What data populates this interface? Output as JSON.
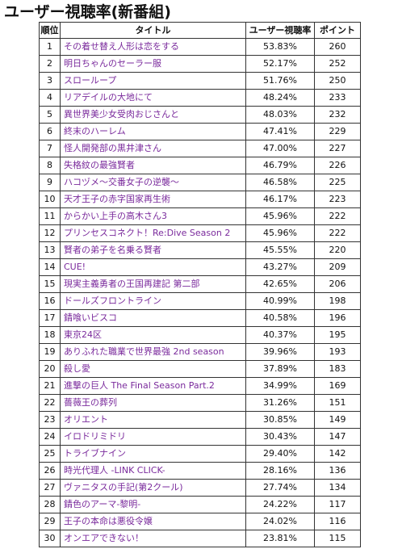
{
  "page": {
    "title": "ユーザー視聴率(新番組)"
  },
  "table": {
    "headers": {
      "rank": "順位",
      "title": "タイトル",
      "rate": "ユーザー視聴率",
      "points": "ポイント"
    },
    "rows": [
      {
        "rank": "1",
        "title": "その着せ替え人形は恋をする",
        "rate": "53.83%",
        "points": "260"
      },
      {
        "rank": "2",
        "title": "明日ちゃんのセーラー服",
        "rate": "52.17%",
        "points": "252"
      },
      {
        "rank": "3",
        "title": "スローループ",
        "rate": "51.76%",
        "points": "250"
      },
      {
        "rank": "4",
        "title": "リアデイルの大地にて",
        "rate": "48.24%",
        "points": "233"
      },
      {
        "rank": "5",
        "title": "異世界美少女受肉おじさんと",
        "rate": "48.03%",
        "points": "232"
      },
      {
        "rank": "6",
        "title": "終末のハーレム",
        "rate": "47.41%",
        "points": "229"
      },
      {
        "rank": "7",
        "title": "怪人開発部の黒井津さん",
        "rate": "47.00%",
        "points": "227"
      },
      {
        "rank": "8",
        "title": "失格紋の最強賢者",
        "rate": "46.79%",
        "points": "226"
      },
      {
        "rank": "9",
        "title": "ハコヅメ～交番女子の逆襲～",
        "rate": "46.58%",
        "points": "225"
      },
      {
        "rank": "10",
        "title": "天才王子の赤字国家再生術",
        "rate": "46.17%",
        "points": "223"
      },
      {
        "rank": "11",
        "title": "からかい上手の高木さん3",
        "rate": "45.96%",
        "points": "222"
      },
      {
        "rank": "12",
        "title": "プリンセスコネクト！Re:Dive Season 2",
        "rate": "45.96%",
        "points": "222"
      },
      {
        "rank": "13",
        "title": "賢者の弟子を名乗る賢者",
        "rate": "45.55%",
        "points": "220"
      },
      {
        "rank": "14",
        "title": "CUE!",
        "rate": "43.27%",
        "points": "209"
      },
      {
        "rank": "15",
        "title": "現実主義勇者の王国再建記 第二部",
        "rate": "42.65%",
        "points": "206"
      },
      {
        "rank": "16",
        "title": "ドールズフロントライン",
        "rate": "40.99%",
        "points": "198"
      },
      {
        "rank": "17",
        "title": "錆喰いビスコ",
        "rate": "40.58%",
        "points": "196"
      },
      {
        "rank": "18",
        "title": "東京24区",
        "rate": "40.37%",
        "points": "195"
      },
      {
        "rank": "19",
        "title": "ありふれた職業で世界最強 2nd season",
        "rate": "39.96%",
        "points": "193"
      },
      {
        "rank": "20",
        "title": "殺し愛",
        "rate": "37.89%",
        "points": "183"
      },
      {
        "rank": "21",
        "title": "進撃の巨人 The Final Season Part.2",
        "rate": "34.99%",
        "points": "169"
      },
      {
        "rank": "22",
        "title": "薔薇王の葬列",
        "rate": "31.26%",
        "points": "151"
      },
      {
        "rank": "23",
        "title": "オリエント",
        "rate": "30.85%",
        "points": "149"
      },
      {
        "rank": "24",
        "title": "イロドリミドリ",
        "rate": "30.43%",
        "points": "147"
      },
      {
        "rank": "25",
        "title": "トライブナイン",
        "rate": "29.40%",
        "points": "142"
      },
      {
        "rank": "26",
        "title": "時光代理人 -LINK CLICK-",
        "rate": "28.16%",
        "points": "136"
      },
      {
        "rank": "27",
        "title": "ヴァニタスの手記(第2クール)",
        "rate": "27.74%",
        "points": "134"
      },
      {
        "rank": "28",
        "title": "錆色のアーマ-黎明-",
        "rate": "24.22%",
        "points": "117"
      },
      {
        "rank": "29",
        "title": "王子の本命は悪役令嬢",
        "rate": "24.02%",
        "points": "116"
      },
      {
        "rank": "30",
        "title": "オンエアできない！",
        "rate": "23.81%",
        "points": "115"
      }
    ]
  },
  "colors": {
    "title_text": "#7a2a9c",
    "border": "#333333"
  }
}
